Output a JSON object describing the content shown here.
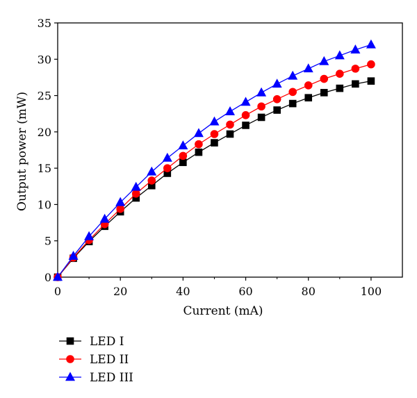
{
  "chart_data": {
    "type": "line",
    "xlabel": "Current (mA)",
    "ylabel": "Output power (mW)",
    "xlim": [
      0,
      110
    ],
    "ylim": [
      0,
      35
    ],
    "xticks": [
      0,
      20,
      40,
      60,
      80,
      100
    ],
    "yticks": [
      0,
      5,
      10,
      15,
      20,
      25,
      30,
      35
    ],
    "grid": false,
    "legend_position": "bottom-left, below plot",
    "x": [
      0,
      5,
      10,
      15,
      20,
      25,
      30,
      35,
      40,
      45,
      50,
      55,
      60,
      65,
      70,
      75,
      80,
      85,
      90,
      95,
      100
    ],
    "series": [
      {
        "name": "LED I",
        "color": "#000000",
        "marker": "square",
        "values": [
          0,
          2.6,
          4.9,
          7.0,
          9.0,
          10.9,
          12.6,
          14.3,
          15.8,
          17.2,
          18.5,
          19.7,
          20.9,
          22.0,
          23.0,
          23.9,
          24.7,
          25.4,
          26.0,
          26.6,
          27.0
        ]
      },
      {
        "name": "LED II",
        "color": "#ff0000",
        "marker": "circle",
        "values": [
          0,
          2.7,
          5.1,
          7.3,
          9.4,
          11.5,
          13.3,
          15.0,
          16.7,
          18.3,
          19.7,
          21.0,
          22.3,
          23.5,
          24.5,
          25.5,
          26.4,
          27.3,
          28.0,
          28.7,
          29.3
        ]
      },
      {
        "name": "LED III",
        "color": "#0000ff",
        "marker": "triangle",
        "values": [
          0,
          2.9,
          5.6,
          8.0,
          10.3,
          12.4,
          14.5,
          16.4,
          18.1,
          19.8,
          21.4,
          22.8,
          24.1,
          25.4,
          26.6,
          27.7,
          28.7,
          29.7,
          30.5,
          31.3,
          32.0
        ]
      }
    ]
  }
}
